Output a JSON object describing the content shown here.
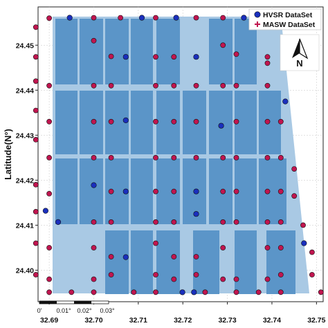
{
  "map": {
    "ylabel": "Latitude(N°)",
    "x_ticks": [
      "32.69",
      "32.70",
      "32.71",
      "32.72",
      "32.73",
      "32.74",
      "32.75"
    ],
    "y_ticks": [
      "24.45",
      "24.44",
      "24.43",
      "24.42",
      "24.41",
      "24.40"
    ],
    "x_range": [
      32.6875,
      32.7515
    ],
    "y_range": [
      24.393,
      24.4585
    ],
    "legend": {
      "hvsr_label": "HVSR DataSet",
      "masw_label": "MASW DataSet",
      "hvsr_color": "#1a2fbd",
      "masw_color": "#c0154f"
    },
    "north_arrow": {
      "label": "N"
    },
    "scale_bar": {
      "labels": [
        "0'",
        "0.01°",
        "0.02°",
        "0.03°"
      ]
    },
    "colors": {
      "block_fill": "#5b95c8",
      "background_fill": "#a9c9e4",
      "grid": "#d0d0d0"
    }
  },
  "points": {
    "hvsr": [
      [
        32.6946,
        24.4561
      ],
      [
        32.7108,
        24.4561
      ],
      [
        32.7185,
        24.4561
      ],
      [
        32.7337,
        24.4561
      ],
      [
        32.7072,
        24.4474
      ],
      [
        32.7072,
        24.4333
      ],
      [
        32.723,
        24.4474
      ],
      [
        32.7286,
        24.4321
      ],
      [
        32.743,
        24.4375
      ],
      [
        32.7,
        24.4189
      ],
      [
        32.7072,
        24.4175
      ],
      [
        32.723,
        24.4175
      ],
      [
        32.6892,
        24.4132
      ],
      [
        32.692,
        24.4107
      ],
      [
        32.723,
        24.4125
      ],
      [
        32.7072,
        24.4029
      ],
      [
        32.7199,
        24.3951
      ],
      [
        32.7225,
        24.3951
      ],
      [
        32.7472,
        24.406
      ]
    ],
    "masw": [
      [
        32.687,
        24.454
      ],
      [
        32.69,
        24.456
      ],
      [
        32.7,
        24.4561
      ],
      [
        32.706,
        24.4561
      ],
      [
        32.7139,
        24.4561
      ],
      [
        32.723,
        24.4561
      ],
      [
        32.729,
        24.4561
      ],
      [
        32.739,
        24.4561
      ],
      [
        32.687,
        24.4474
      ],
      [
        32.7,
        24.451
      ],
      [
        32.7039,
        24.4475
      ],
      [
        32.7139,
        24.4474
      ],
      [
        32.718,
        24.4474
      ],
      [
        32.729,
        24.45
      ],
      [
        32.732,
        24.448
      ],
      [
        32.739,
        24.4474
      ],
      [
        32.739,
        24.446
      ],
      [
        32.687,
        24.442
      ],
      [
        32.69,
        24.441
      ],
      [
        32.7,
        24.441
      ],
      [
        32.7039,
        24.441
      ],
      [
        32.7139,
        24.441
      ],
      [
        32.718,
        24.441
      ],
      [
        32.723,
        24.441
      ],
      [
        32.729,
        24.441
      ],
      [
        32.732,
        24.441
      ],
      [
        32.739,
        24.441
      ],
      [
        32.687,
        24.4355
      ],
      [
        32.69,
        24.433
      ],
      [
        32.7,
        24.433
      ],
      [
        32.7039,
        24.433
      ],
      [
        32.7139,
        24.433
      ],
      [
        32.718,
        24.433
      ],
      [
        32.723,
        24.433
      ],
      [
        32.732,
        24.433
      ],
      [
        32.739,
        24.433
      ],
      [
        32.742,
        24.433
      ],
      [
        32.687,
        24.429
      ],
      [
        32.69,
        24.425
      ],
      [
        32.7,
        24.425
      ],
      [
        32.7039,
        24.425
      ],
      [
        32.7139,
        24.425
      ],
      [
        32.718,
        24.425
      ],
      [
        32.723,
        24.425
      ],
      [
        32.729,
        24.425
      ],
      [
        32.732,
        24.425
      ],
      [
        32.739,
        24.425
      ],
      [
        32.742,
        24.425
      ],
      [
        32.745,
        24.4225
      ],
      [
        32.687,
        24.419
      ],
      [
        32.69,
        24.417
      ],
      [
        32.7039,
        24.4175
      ],
      [
        32.7139,
        24.4175
      ],
      [
        32.718,
        24.4175
      ],
      [
        32.729,
        24.4175
      ],
      [
        32.732,
        24.4175
      ],
      [
        32.739,
        24.4175
      ],
      [
        32.742,
        24.4175
      ],
      [
        32.745,
        24.4165
      ],
      [
        32.687,
        24.413
      ],
      [
        32.7,
        24.4107
      ],
      [
        32.7039,
        24.4107
      ],
      [
        32.7139,
        24.4107
      ],
      [
        32.718,
        24.4107
      ],
      [
        32.729,
        24.4107
      ],
      [
        32.732,
        24.4107
      ],
      [
        32.739,
        24.4107
      ],
      [
        32.742,
        24.4107
      ],
      [
        32.747,
        24.41
      ],
      [
        32.687,
        24.406
      ],
      [
        32.69,
        24.405
      ],
      [
        32.7,
        24.405
      ],
      [
        32.7039,
        24.403
      ],
      [
        32.7139,
        24.406
      ],
      [
        32.718,
        24.403
      ],
      [
        32.723,
        24.403
      ],
      [
        32.729,
        24.405
      ],
      [
        32.739,
        24.405
      ],
      [
        32.742,
        24.405
      ],
      [
        32.749,
        24.404
      ],
      [
        32.687,
        24.399
      ],
      [
        32.69,
        24.398
      ],
      [
        32.7,
        24.398
      ],
      [
        32.7039,
        24.399
      ],
      [
        32.7139,
        24.399
      ],
      [
        32.718,
        24.398
      ],
      [
        32.723,
        24.399
      ],
      [
        32.729,
        24.398
      ],
      [
        32.732,
        24.398
      ],
      [
        32.739,
        24.398
      ],
      [
        32.742,
        24.399
      ],
      [
        32.749,
        24.399
      ],
      [
        32.69,
        24.3951
      ],
      [
        32.695,
        24.3951
      ],
      [
        32.7,
        24.3951
      ],
      [
        32.709,
        24.3951
      ],
      [
        32.7139,
        24.3951
      ],
      [
        32.725,
        24.3951
      ],
      [
        32.732,
        24.3951
      ],
      [
        32.737,
        24.3951
      ],
      [
        32.742,
        24.3951
      ],
      [
        32.751,
        24.3951
      ]
    ]
  }
}
